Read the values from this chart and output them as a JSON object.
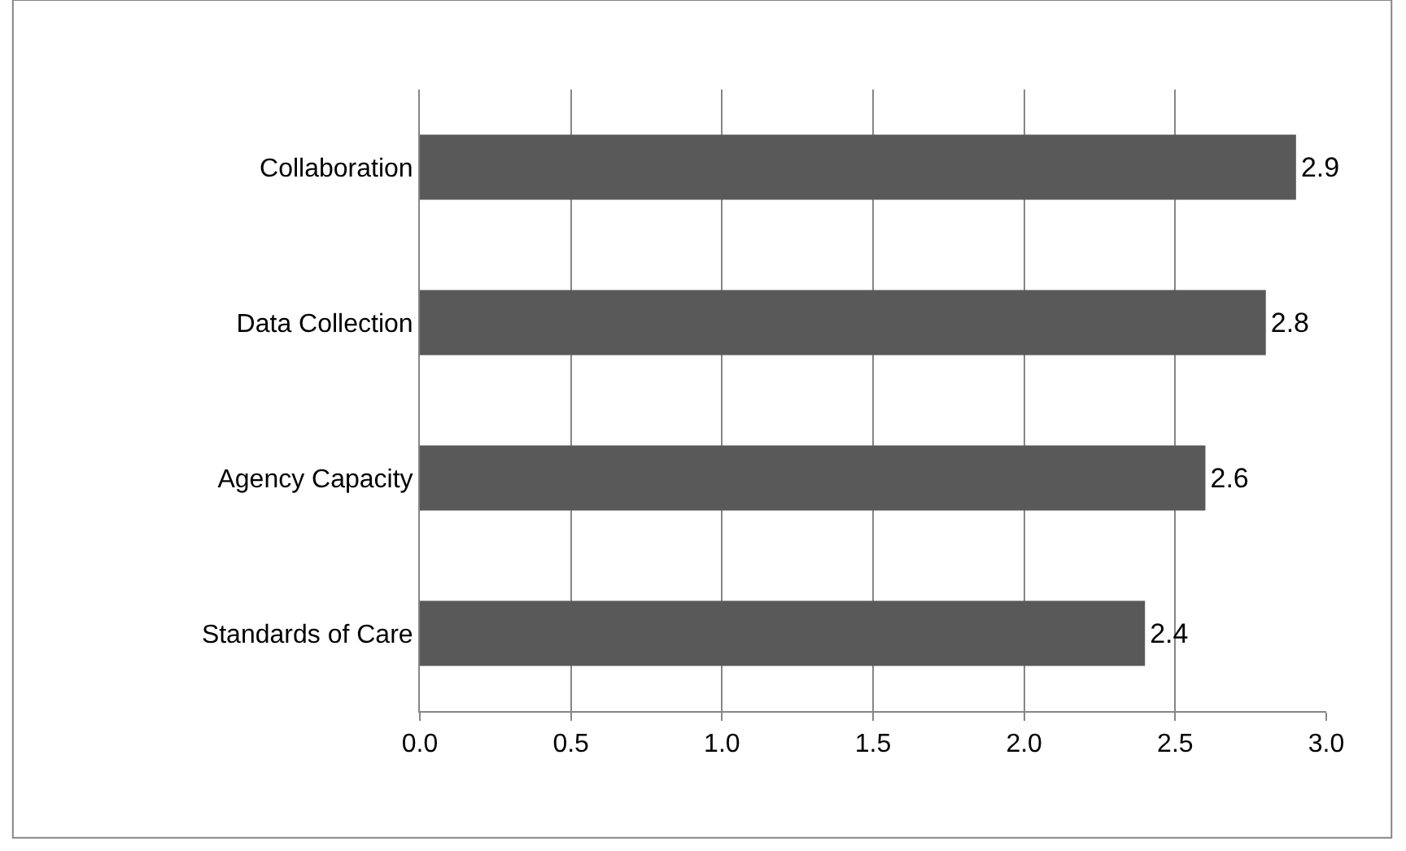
{
  "chart_data": {
    "type": "bar",
    "orientation": "horizontal",
    "categories": [
      "Collaboration",
      "Data Collection",
      "Agency Capacity",
      "Standards of Care"
    ],
    "values": [
      2.9,
      2.8,
      2.6,
      2.4
    ],
    "color": "#595959",
    "xlim": [
      0,
      3
    ],
    "xticks": [
      {
        "value": 0,
        "label": "0.0"
      },
      {
        "value": 0.5,
        "label": "0.5"
      },
      {
        "value": 1,
        "label": "1.0"
      },
      {
        "value": 1.5,
        "label": "1.5"
      },
      {
        "value": 2,
        "label": "2.0"
      },
      {
        "value": 2.5,
        "label": "2.5"
      },
      {
        "value": 3,
        "label": "3.0"
      }
    ],
    "grid": "x",
    "data_labels": true
  }
}
